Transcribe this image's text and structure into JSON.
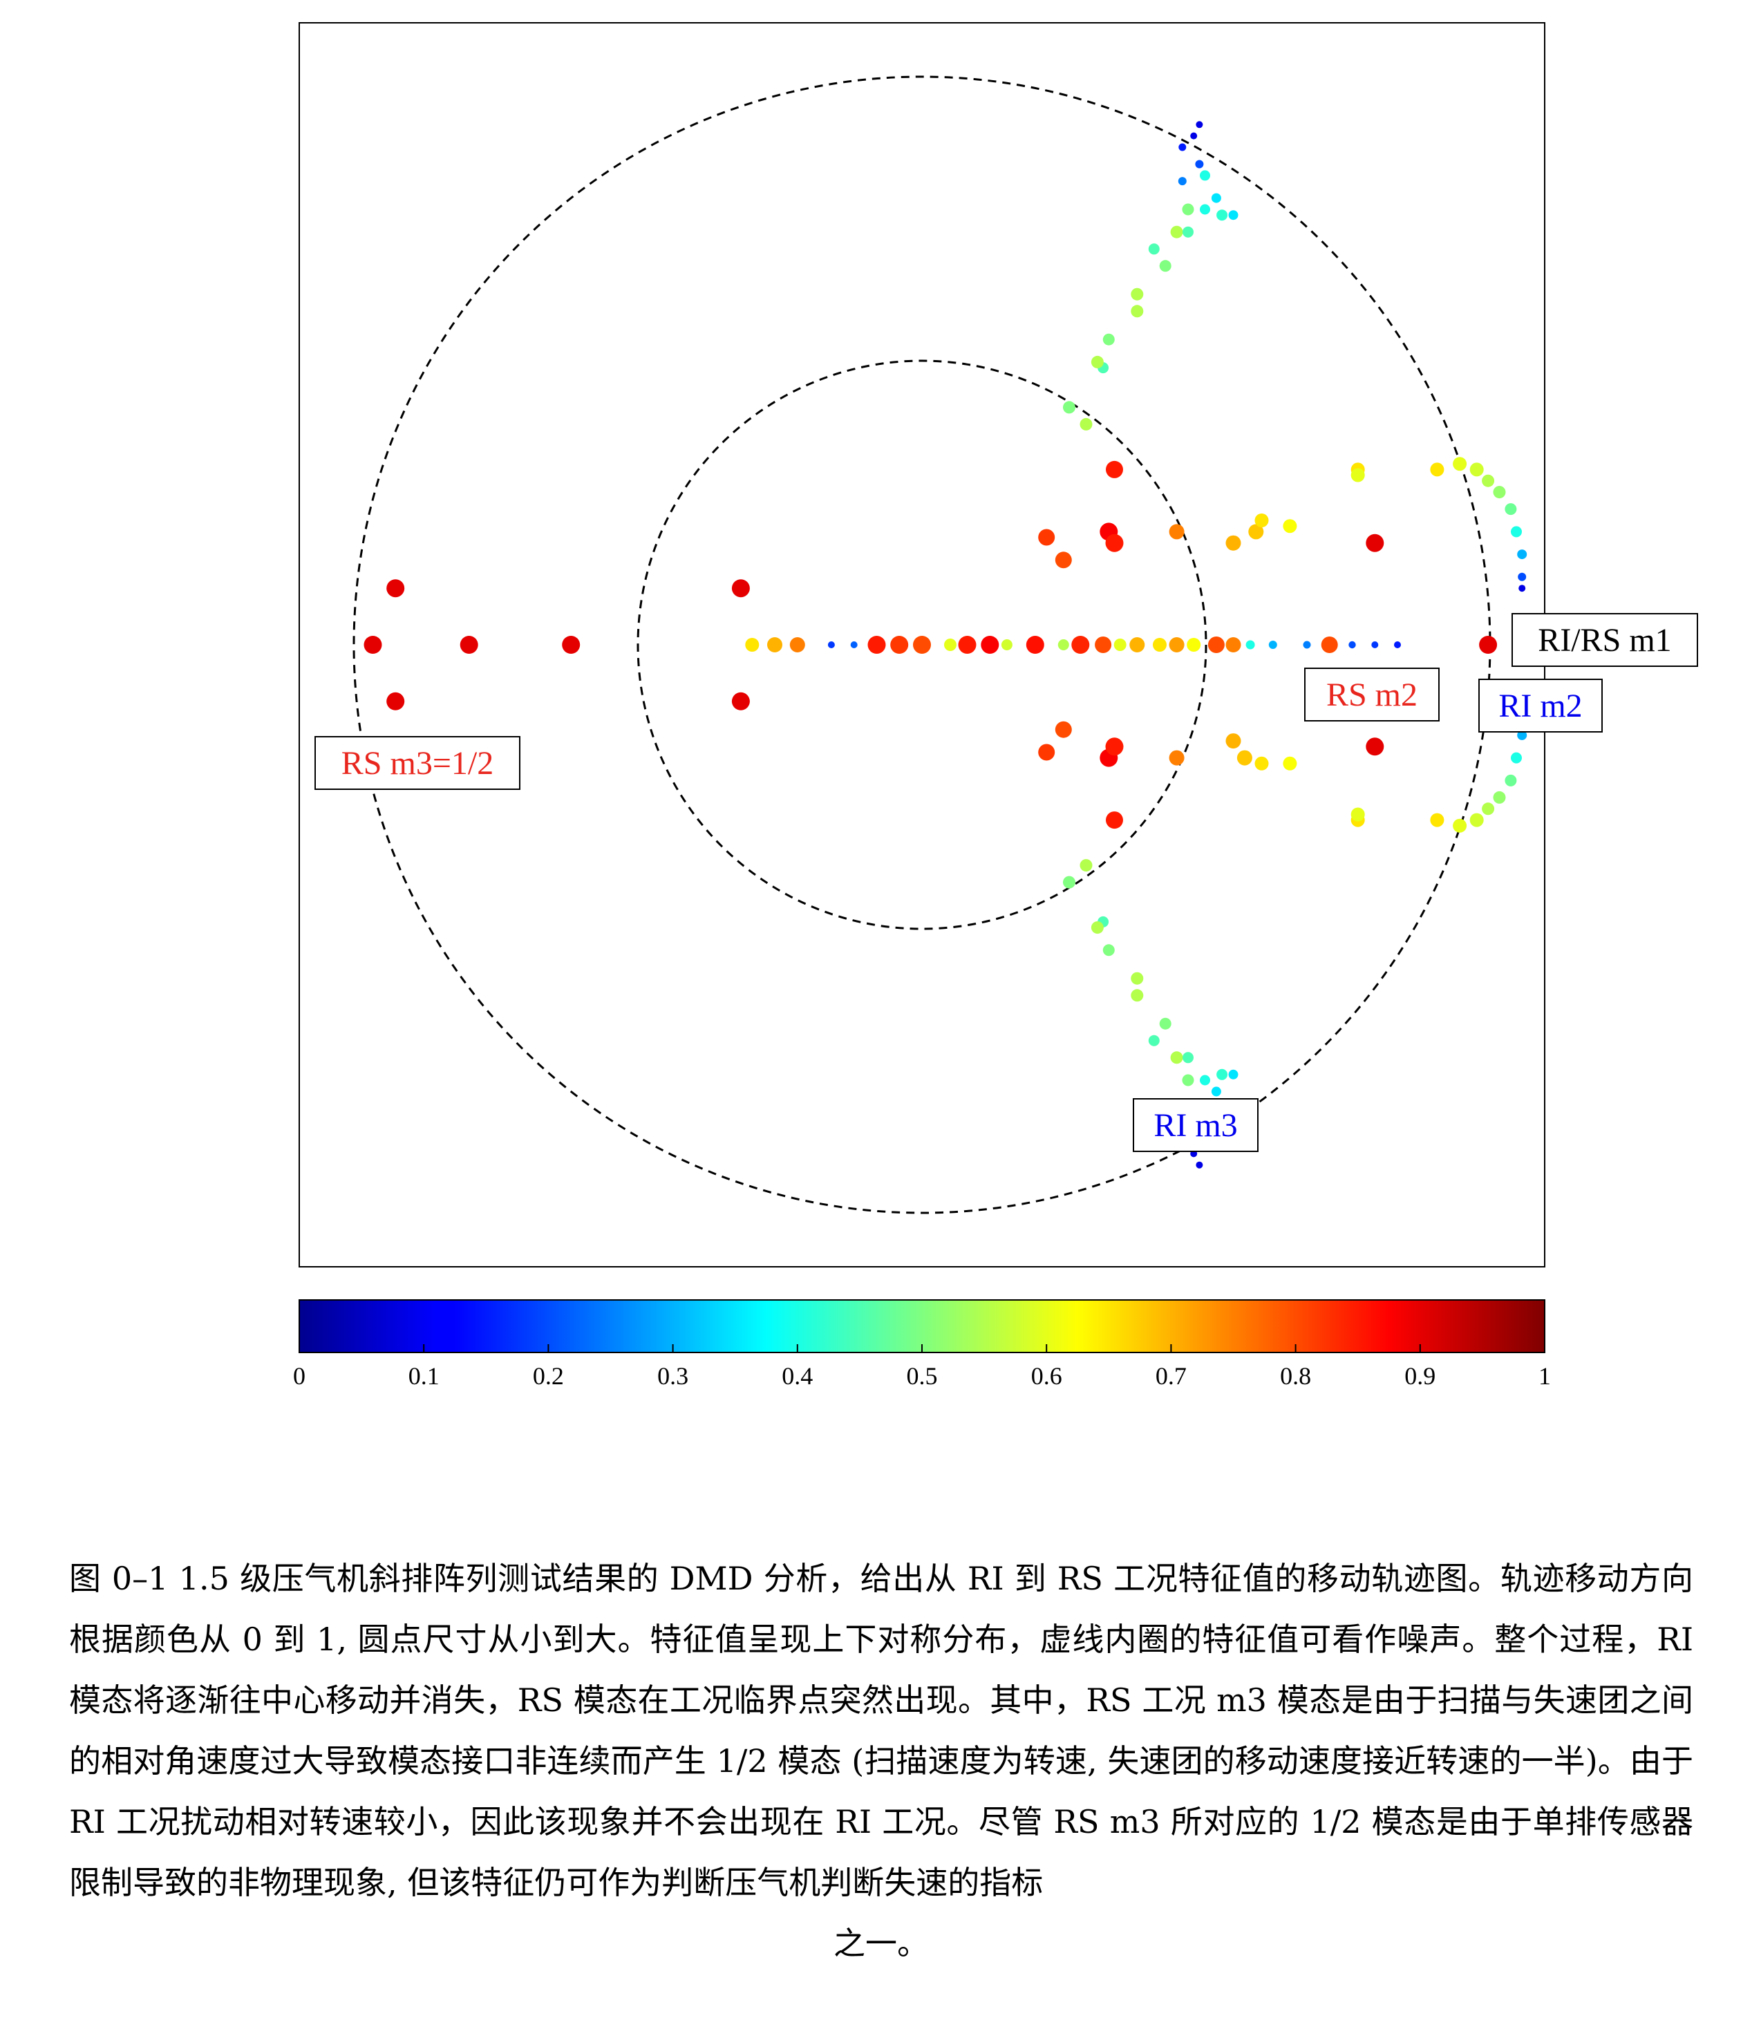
{
  "chart_data": {
    "type": "scatter",
    "title": "",
    "xlabel": "",
    "ylabel": "",
    "xlim": [
      -1.1,
      1.1
    ],
    "ylim": [
      -1.1,
      1.1
    ],
    "grid": false,
    "circles": [
      {
        "radius": 1.0,
        "style": "dashed"
      },
      {
        "radius": 0.5,
        "style": "dashed"
      }
    ],
    "colorbar": {
      "orientation": "horizontal",
      "placement": "bottom",
      "colormap": "jet",
      "range": [
        0,
        1
      ],
      "ticks": [
        0,
        0.1,
        0.2,
        0.3,
        0.4,
        0.5,
        0.6,
        0.7,
        0.8,
        0.9,
        1
      ],
      "tick_labels": [
        "0",
        "0.1",
        "0.2",
        "0.3",
        "0.4",
        "0.5",
        "0.6",
        "0.7",
        "0.8",
        "0.9",
        "1"
      ]
    },
    "annotations": [
      {
        "text": "RI/RS m1",
        "x": 1.0,
        "y": 0.0,
        "color": "#000000"
      },
      {
        "text": "RS m2",
        "x": 0.8,
        "y": -0.1,
        "color": "#e8261e"
      },
      {
        "text": "RI m2",
        "x": 1.0,
        "y": -0.12,
        "color": "#0000ee"
      },
      {
        "text": "RS m3=1/2",
        "x": -1.0,
        "y": -0.2,
        "color": "#e8261e"
      },
      {
        "text": "RI m3",
        "x": 0.48,
        "y": -0.85,
        "color": "#0000ee"
      }
    ],
    "series": [
      {
        "points": [
          [
            0.0,
            0.0,
            0.8,
            0.9
          ],
          [
            -0.16,
            0.0,
            0.18,
            0.1
          ],
          [
            -0.12,
            0.0,
            0.22,
            0.1
          ],
          [
            0.05,
            0.0,
            0.6,
            0.5
          ],
          [
            0.15,
            0.0,
            0.58,
            0.4
          ],
          [
            0.25,
            0.0,
            0.55,
            0.4
          ],
          [
            0.35,
            0.0,
            0.6,
            0.5
          ],
          [
            0.45,
            0.0,
            0.72,
            0.7
          ],
          [
            0.52,
            0.0,
            0.8,
            0.8
          ],
          [
            0.58,
            0.0,
            0.4,
            0.25
          ],
          [
            0.62,
            0.0,
            0.3,
            0.2
          ],
          [
            0.68,
            0.0,
            0.25,
            0.15
          ],
          [
            0.72,
            0.0,
            0.8,
            0.8
          ],
          [
            0.76,
            0.0,
            0.2,
            0.12
          ],
          [
            0.8,
            0.0,
            0.18,
            0.1
          ],
          [
            0.84,
            0.0,
            0.15,
            0.1
          ],
          [
            1.0,
            0.0,
            0.9,
            0.9
          ],
          [
            -0.3,
            0.0,
            0.65,
            0.6
          ],
          [
            -0.26,
            0.0,
            0.7,
            0.7
          ],
          [
            -0.22,
            0.0,
            0.75,
            0.7
          ],
          [
            -0.08,
            0.0,
            0.85,
            0.9
          ],
          [
            -0.04,
            0.0,
            0.82,
            0.9
          ],
          [
            0.08,
            0.0,
            0.85,
            0.9
          ],
          [
            0.12,
            0.0,
            0.88,
            0.9
          ],
          [
            0.2,
            0.0,
            0.86,
            0.9
          ],
          [
            0.28,
            0.0,
            0.84,
            0.9
          ],
          [
            0.32,
            0.0,
            0.8,
            0.8
          ],
          [
            0.38,
            0.0,
            0.7,
            0.7
          ],
          [
            0.42,
            0.0,
            0.65,
            0.6
          ],
          [
            0.48,
            0.0,
            0.62,
            0.6
          ],
          [
            0.55,
            0.0,
            0.75,
            0.7
          ],
          [
            -0.97,
            0.0,
            0.9,
            0.9
          ],
          [
            -0.8,
            0.0,
            0.9,
            0.9
          ],
          [
            -0.62,
            0.0,
            0.9,
            0.9
          ],
          [
            -0.93,
            0.1,
            0.9,
            0.9
          ],
          [
            -0.93,
            -0.1,
            0.9,
            0.9
          ],
          [
            -0.32,
            0.1,
            0.9,
            0.9
          ],
          [
            -0.32,
            -0.1,
            0.9,
            0.9
          ],
          [
            0.8,
            0.18,
            0.9,
            0.9
          ],
          [
            0.8,
            -0.18,
            0.9,
            0.9
          ],
          [
            0.45,
            0.2,
            0.75,
            0.7
          ],
          [
            0.55,
            0.18,
            0.7,
            0.7
          ],
          [
            0.59,
            0.2,
            0.68,
            0.7
          ],
          [
            0.6,
            0.22,
            0.65,
            0.6
          ],
          [
            0.65,
            0.21,
            0.62,
            0.6
          ],
          [
            0.45,
            -0.2,
            0.75,
            0.7
          ],
          [
            0.55,
            -0.17,
            0.7,
            0.7
          ],
          [
            0.57,
            -0.2,
            0.68,
            0.7
          ],
          [
            0.6,
            -0.21,
            0.65,
            0.6
          ],
          [
            0.65,
            -0.21,
            0.62,
            0.6
          ],
          [
            0.34,
            0.31,
            0.85,
            0.85
          ],
          [
            0.34,
            -0.31,
            0.85,
            0.85
          ],
          [
            0.26,
            0.42,
            0.5,
            0.5
          ],
          [
            0.29,
            0.39,
            0.55,
            0.5
          ],
          [
            0.26,
            -0.42,
            0.5,
            0.5
          ],
          [
            0.29,
            -0.39,
            0.55,
            0.5
          ],
          [
            0.33,
            0.2,
            0.88,
            0.9
          ],
          [
            0.34,
            0.18,
            0.85,
            0.9
          ],
          [
            0.33,
            -0.2,
            0.88,
            0.9
          ],
          [
            0.34,
            -0.18,
            0.85,
            0.9
          ],
          [
            0.25,
            0.15,
            0.8,
            0.8
          ],
          [
            0.25,
            -0.15,
            0.8,
            0.8
          ],
          [
            0.22,
            0.19,
            0.82,
            0.8
          ],
          [
            0.22,
            -0.19,
            0.82,
            0.8
          ],
          [
            0.32,
            0.49,
            0.45,
            0.4
          ],
          [
            0.32,
            -0.49,
            0.45,
            0.4
          ],
          [
            0.33,
            0.54,
            0.5,
            0.45
          ],
          [
            0.33,
            -0.54,
            0.5,
            0.45
          ],
          [
            0.38,
            0.59,
            0.55,
            0.5
          ],
          [
            0.38,
            -0.59,
            0.55,
            0.5
          ],
          [
            0.41,
            0.7,
            0.45,
            0.4
          ],
          [
            0.41,
            -0.7,
            0.45,
            0.4
          ],
          [
            0.45,
            0.73,
            0.55,
            0.5
          ],
          [
            0.45,
            -0.73,
            0.55,
            0.5
          ],
          [
            0.47,
            0.77,
            0.5,
            0.45
          ],
          [
            0.47,
            -0.77,
            0.5,
            0.45
          ],
          [
            0.53,
            0.76,
            0.42,
            0.4
          ],
          [
            0.53,
            -0.76,
            0.42,
            0.4
          ],
          [
            0.5,
            0.83,
            0.4,
            0.35
          ],
          [
            0.5,
            -0.83,
            0.4,
            0.35
          ],
          [
            0.52,
            0.79,
            0.35,
            0.3
          ],
          [
            0.52,
            -0.79,
            0.35,
            0.3
          ],
          [
            0.55,
            0.76,
            0.35,
            0.3
          ],
          [
            0.55,
            -0.76,
            0.35,
            0.3
          ],
          [
            0.49,
            0.85,
            0.2,
            0.2
          ],
          [
            0.49,
            -0.85,
            0.2,
            0.2
          ],
          [
            0.46,
            0.82,
            0.25,
            0.2
          ],
          [
            0.46,
            -0.82,
            0.25,
            0.2
          ],
          [
            0.46,
            0.88,
            0.15,
            0.15
          ],
          [
            0.46,
            -0.88,
            0.15,
            0.15
          ],
          [
            0.48,
            0.9,
            0.1,
            0.1
          ],
          [
            0.48,
            -0.9,
            0.1,
            0.1
          ],
          [
            0.49,
            0.92,
            0.1,
            0.1
          ],
          [
            0.49,
            -0.92,
            0.1,
            0.1
          ],
          [
            0.5,
            0.77,
            0.4,
            0.35
          ],
          [
            0.5,
            -0.77,
            0.4,
            0.35
          ],
          [
            0.47,
            0.73,
            0.45,
            0.4
          ],
          [
            0.47,
            -0.73,
            0.45,
            0.4
          ],
          [
            0.43,
            0.67,
            0.5,
            0.45
          ],
          [
            0.43,
            -0.67,
            0.5,
            0.45
          ],
          [
            0.38,
            0.62,
            0.55,
            0.5
          ],
          [
            0.38,
            -0.62,
            0.55,
            0.5
          ],
          [
            0.31,
            0.5,
            0.55,
            0.5
          ],
          [
            0.31,
            -0.5,
            0.55,
            0.5
          ],
          [
            0.91,
            0.31,
            0.65,
            0.6
          ],
          [
            0.91,
            -0.31,
            0.65,
            0.6
          ],
          [
            0.95,
            0.32,
            0.6,
            0.6
          ],
          [
            0.95,
            -0.32,
            0.6,
            0.6
          ],
          [
            0.98,
            0.31,
            0.58,
            0.6
          ],
          [
            0.98,
            -0.31,
            0.58,
            0.6
          ],
          [
            1.0,
            0.29,
            0.55,
            0.5
          ],
          [
            1.0,
            -0.29,
            0.55,
            0.5
          ],
          [
            1.02,
            0.27,
            0.52,
            0.5
          ],
          [
            1.02,
            -0.27,
            0.52,
            0.5
          ],
          [
            1.04,
            0.24,
            0.48,
            0.45
          ],
          [
            1.04,
            -0.24,
            0.48,
            0.45
          ],
          [
            1.05,
            0.2,
            0.4,
            0.4
          ],
          [
            1.05,
            -0.2,
            0.4,
            0.4
          ],
          [
            1.06,
            0.16,
            0.3,
            0.3
          ],
          [
            1.06,
            -0.16,
            0.3,
            0.3
          ],
          [
            1.06,
            0.12,
            0.2,
            0.2
          ],
          [
            1.06,
            -0.12,
            0.2,
            0.2
          ],
          [
            1.06,
            0.1,
            0.1,
            0.1
          ],
          [
            1.06,
            -0.1,
            0.1,
            0.1
          ],
          [
            0.77,
            0.31,
            0.65,
            0.6
          ],
          [
            0.77,
            -0.31,
            0.65,
            0.6
          ],
          [
            0.77,
            0.3,
            0.6,
            0.6
          ],
          [
            0.77,
            -0.3,
            0.6,
            0.6
          ]
        ]
      }
    ]
  },
  "caption": {
    "text": "图 0–1 1.5 级压气机斜排阵列测试结果的 DMD 分析，给出从 RI 到 RS 工况特征值的移动轨迹图。轨迹移动方向根据颜色从 0 到 1, 圆点尺寸从小到大。特征值呈现上下对称分布，虚线内圈的特征值可看作噪声。整个过程，RI 模态将逐渐往中心移动并消失，RS 模态在工况临界点突然出现。其中，RS 工况 m3 模态是由于扫描与失速团之间的相对角速度过大导致模态接口非连续而产生 1/2 模态 (扫描速度为转速, 失速团的移动速度接近转速的一半)。由于 RI 工况扰动相对转速较小，因此该现象并不会出现在 RI 工况。尽管 RS m3 所对应的 1/2 模态是由于单排传感器限制导致的非物理现象, 但该特征仍可作为判断压气机判断失速的指标",
    "last_line": "之一。"
  }
}
